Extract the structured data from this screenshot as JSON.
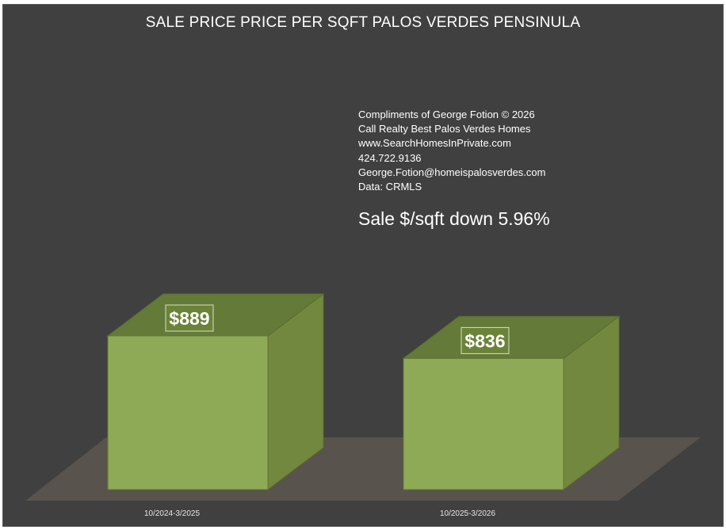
{
  "title": "SALE PRICE PRICE PER SQFT PALOS VERDES PENSINULA",
  "info_lines": [
    "Compliments of George Fotion © 2026",
    "Call Realty Best Palos Verdes Homes",
    "www.SearchHomesInPrivate.com",
    "424.722.9136",
    "George.Fotion@homeispalosverdes.com",
    "Data: CRMLS"
  ],
  "headline": "Sale $/sqft down 5.96%",
  "colors": {
    "background": "#404040",
    "bar_front": "#8faa56",
    "bar_side": "#72883f",
    "bar_top": "#647a38",
    "floor": "#58534c",
    "text": "#ffffff"
  },
  "chart_data": {
    "type": "bar",
    "style": "3d-column",
    "title": "SALE PRICE PRICE PER SQFT PALOS VERDES PENSINULA",
    "categories": [
      "10/2024-3/2025",
      "10/2025-3/2026"
    ],
    "values": [
      889,
      836
    ],
    "data_labels": [
      "$889",
      "$836"
    ],
    "grid": false,
    "legend": "none"
  }
}
